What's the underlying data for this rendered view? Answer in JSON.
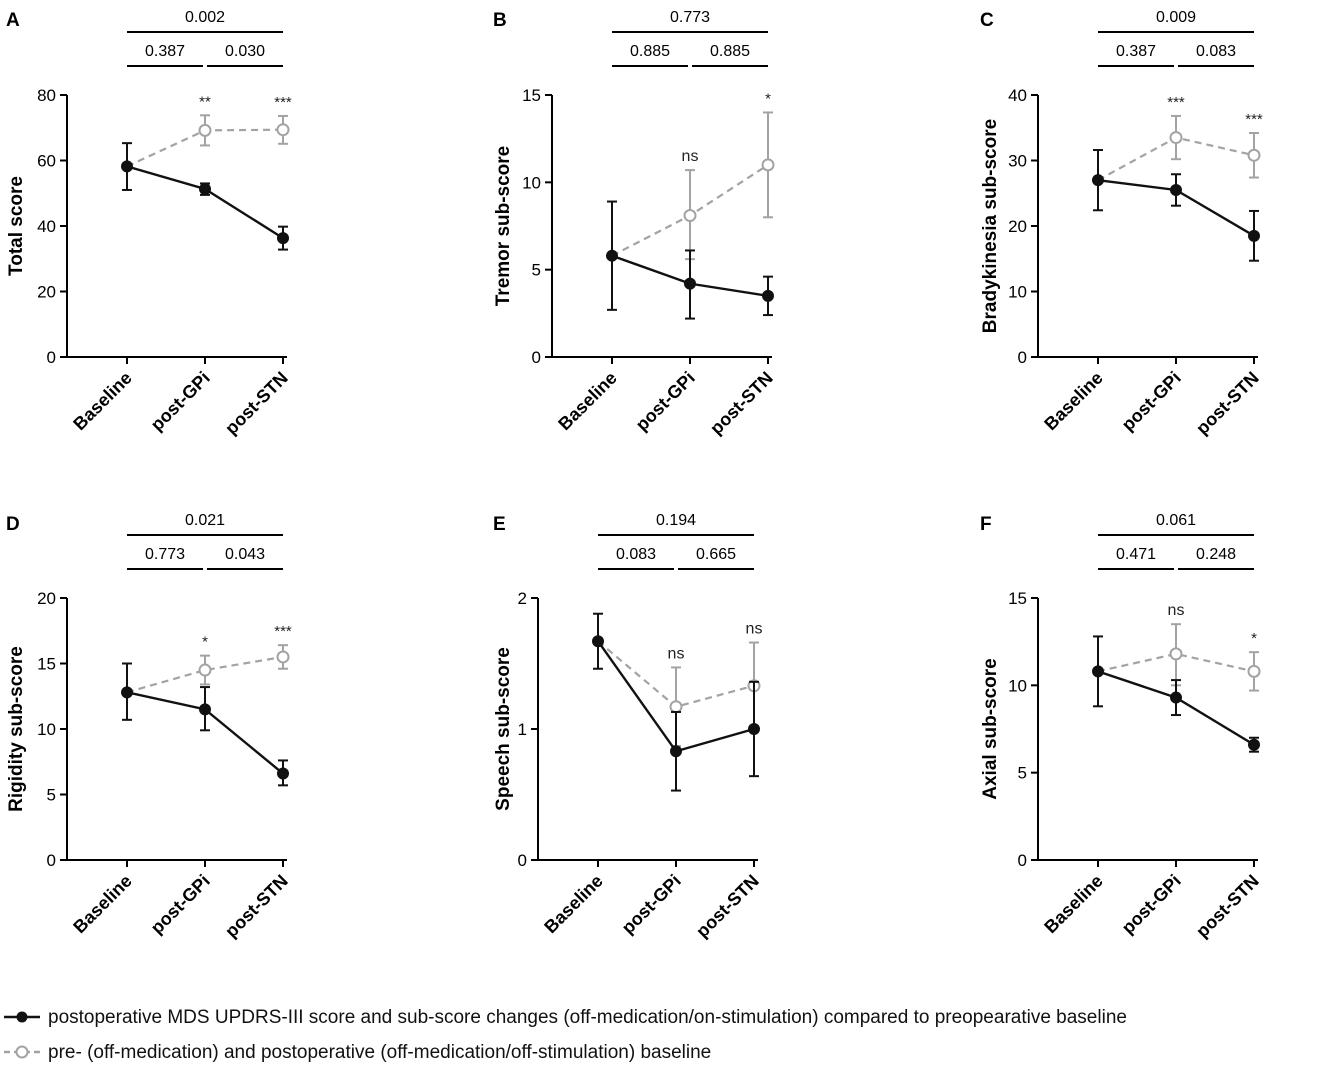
{
  "colors": {
    "postoperative": "#111111",
    "baseline_offstim": "#a3a3a3",
    "axis": "#000000"
  },
  "legend": {
    "items": [
      {
        "label": "postoperative MDS UPDRS-III score and sub-score changes (off-medication/on-stimulation) compared to preopearative baseline",
        "style": "solid",
        "marker": "filled-circle"
      },
      {
        "label": "pre- (off-medication) and postoperative (off-medication/off-stimulation) baseline",
        "style": "dashed",
        "marker": "open-circle"
      }
    ]
  },
  "chart_data": [
    {
      "panel": "A",
      "type": "line",
      "ylabel": "Total score",
      "categories": [
        "Baseline",
        "post-GPi",
        "post-STN"
      ],
      "ylim": [
        0,
        80
      ],
      "yticks": [
        "0",
        "20",
        "40",
        "60",
        "80"
      ],
      "series": [
        {
          "name": "postoperative (off-medication/on-stimulation)",
          "values": [
            58.2,
            51.3,
            36.3
          ],
          "err_low": [
            51.0,
            49.5,
            32.8
          ],
          "err_high": [
            65.3,
            53.0,
            39.8
          ]
        },
        {
          "name": "baseline (off-medication/off-stimulation)",
          "values": [
            58.2,
            69.2,
            69.4
          ],
          "err_low": [
            58.2,
            64.6,
            65.1
          ],
          "err_high": [
            58.2,
            73.8,
            73.6
          ]
        }
      ],
      "significance": [
        "",
        "**",
        "***"
      ],
      "brackets": [
        {
          "from": 0,
          "to": 2,
          "label": "0.002",
          "level": "top"
        },
        {
          "from": 0,
          "to": 1,
          "label": "0.387",
          "level": "low"
        },
        {
          "from": 1,
          "to": 2,
          "label": "0.030",
          "level": "low"
        }
      ]
    },
    {
      "panel": "B",
      "type": "line",
      "ylabel": "Tremor sub-score",
      "categories": [
        "Baseline",
        "post-GPi",
        "post-STN"
      ],
      "ylim": [
        0,
        15
      ],
      "yticks": [
        "0",
        "5",
        "10",
        "15"
      ],
      "series": [
        {
          "name": "postoperative (off-medication/on-stimulation)",
          "values": [
            5.8,
            4.2,
            3.5
          ],
          "err_low": [
            2.7,
            2.2,
            2.4
          ],
          "err_high": [
            8.9,
            6.1,
            4.6
          ]
        },
        {
          "name": "baseline (off-medication/off-stimulation)",
          "values": [
            5.8,
            8.1,
            11.0
          ],
          "err_low": [
            5.8,
            5.6,
            8.0
          ],
          "err_high": [
            5.8,
            10.7,
            14.0
          ]
        }
      ],
      "significance": [
        "",
        "ns",
        "*"
      ],
      "brackets": [
        {
          "from": 0,
          "to": 2,
          "label": "0.773",
          "level": "top"
        },
        {
          "from": 0,
          "to": 1,
          "label": "0.885",
          "level": "low"
        },
        {
          "from": 1,
          "to": 2,
          "label": "0.885",
          "level": "low"
        }
      ]
    },
    {
      "panel": "C",
      "type": "line",
      "ylabel": "Bradykinesia sub-score",
      "categories": [
        "Baseline",
        "post-GPi",
        "post-STN"
      ],
      "ylim": [
        0,
        40
      ],
      "yticks": [
        "0",
        "10",
        "20",
        "30",
        "40"
      ],
      "series": [
        {
          "name": "postoperative (off-medication/on-stimulation)",
          "values": [
            27.0,
            25.5,
            18.5
          ],
          "err_low": [
            22.4,
            23.1,
            14.7
          ],
          "err_high": [
            31.6,
            27.9,
            22.3
          ]
        },
        {
          "name": "baseline (off-medication/off-stimulation)",
          "values": [
            27.0,
            33.5,
            30.8
          ],
          "err_low": [
            27.0,
            30.2,
            27.4
          ],
          "err_high": [
            27.0,
            36.8,
            34.2
          ]
        }
      ],
      "significance": [
        "",
        "***",
        "***"
      ],
      "brackets": [
        {
          "from": 0,
          "to": 2,
          "label": "0.009",
          "level": "top"
        },
        {
          "from": 0,
          "to": 1,
          "label": "0.387",
          "level": "low"
        },
        {
          "from": 1,
          "to": 2,
          "label": "0.083",
          "level": "low"
        }
      ]
    },
    {
      "panel": "D",
      "type": "line",
      "ylabel": "Rigidity sub-score",
      "categories": [
        "Baseline",
        "post-GPi",
        "post-STN"
      ],
      "ylim": [
        0,
        20
      ],
      "yticks": [
        "0",
        "5",
        "10",
        "15",
        "20"
      ],
      "series": [
        {
          "name": "postoperative (off-medication/on-stimulation)",
          "values": [
            12.8,
            11.5,
            6.6
          ],
          "err_low": [
            10.7,
            9.9,
            5.7
          ],
          "err_high": [
            15.0,
            13.2,
            7.6
          ]
        },
        {
          "name": "baseline (off-medication/off-stimulation)",
          "values": [
            12.8,
            14.5,
            15.5
          ],
          "err_low": [
            12.8,
            13.4,
            14.6
          ],
          "err_high": [
            12.8,
            15.6,
            16.4
          ]
        }
      ],
      "significance": [
        "",
        "*",
        "***"
      ],
      "brackets": [
        {
          "from": 0,
          "to": 2,
          "label": "0.021",
          "level": "top"
        },
        {
          "from": 0,
          "to": 1,
          "label": "0.773",
          "level": "low"
        },
        {
          "from": 1,
          "to": 2,
          "label": "0.043",
          "level": "low"
        }
      ]
    },
    {
      "panel": "E",
      "type": "line",
      "ylabel": "Speech sub-score",
      "categories": [
        "Baseline",
        "post-GPi",
        "post-STN"
      ],
      "ylim": [
        0,
        2
      ],
      "yticks": [
        "0",
        "1",
        "2"
      ],
      "series": [
        {
          "name": "postoperative (off-medication/on-stimulation)",
          "values": [
            1.67,
            0.83,
            1.0
          ],
          "err_low": [
            1.46,
            0.53,
            0.64
          ],
          "err_high": [
            1.88,
            1.13,
            1.36
          ]
        },
        {
          "name": "baseline (off-medication/off-stimulation)",
          "values": [
            1.67,
            1.17,
            1.33
          ],
          "err_low": [
            1.67,
            0.87,
            1.0
          ],
          "err_high": [
            1.67,
            1.47,
            1.66
          ]
        }
      ],
      "significance": [
        "",
        "ns",
        "ns"
      ],
      "brackets": [
        {
          "from": 0,
          "to": 2,
          "label": "0.194",
          "level": "top"
        },
        {
          "from": 0,
          "to": 1,
          "label": "0.083",
          "level": "low"
        },
        {
          "from": 1,
          "to": 2,
          "label": "0.665",
          "level": "low"
        }
      ]
    },
    {
      "panel": "F",
      "type": "line",
      "ylabel": "Axial sub-score",
      "categories": [
        "Baseline",
        "post-GPi",
        "post-STN"
      ],
      "ylim": [
        0,
        15
      ],
      "yticks": [
        "0",
        "5",
        "10",
        "15"
      ],
      "series": [
        {
          "name": "postoperative (off-medication/on-stimulation)",
          "values": [
            10.8,
            9.3,
            6.6
          ],
          "err_low": [
            8.8,
            8.3,
            6.2
          ],
          "err_high": [
            12.8,
            10.3,
            7.0
          ]
        },
        {
          "name": "baseline (off-medication/off-stimulation)",
          "values": [
            10.8,
            11.8,
            10.8
          ],
          "err_low": [
            10.8,
            10.0,
            9.7
          ],
          "err_high": [
            10.8,
            13.5,
            11.9
          ]
        }
      ],
      "significance": [
        "",
        "ns",
        "*"
      ],
      "brackets": [
        {
          "from": 0,
          "to": 2,
          "label": "0.061",
          "level": "top"
        },
        {
          "from": 0,
          "to": 1,
          "label": "0.471",
          "level": "low"
        },
        {
          "from": 1,
          "to": 2,
          "label": "0.248",
          "level": "low"
        }
      ]
    }
  ]
}
